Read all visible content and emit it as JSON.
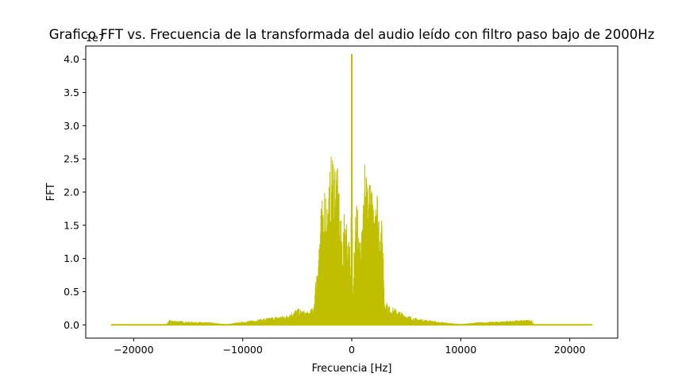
{
  "chart_data": {
    "type": "line",
    "title": "Grafico FFT vs. Frecuencia de la transformada del audio leído con filtro paso bajo de 2000Hz",
    "xlabel": "Frecuencia [Hz]",
    "ylabel": "FFT",
    "y_offset_label": "1e7",
    "xlim": [
      -24400,
      24400
    ],
    "ylim": [
      -0.2,
      4.2
    ],
    "x_ticks": [
      -20000,
      -10000,
      0,
      10000,
      20000
    ],
    "x_tick_labels": [
      "−20000",
      "−10000",
      "0",
      "10000",
      "20000"
    ],
    "y_ticks": [
      0.0,
      0.5,
      1.0,
      1.5,
      2.0,
      2.5,
      3.0,
      3.5,
      4.0
    ],
    "y_tick_labels": [
      "0.0",
      "0.5",
      "1.0",
      "1.5",
      "2.0",
      "2.5",
      "3.0",
      "3.5",
      "4.0"
    ],
    "y_scale_multiplier": 10000000,
    "grid": false,
    "series": [
      {
        "color": "#bfbf00",
        "envelope": {
          "x": [
            -22050,
            -17000,
            -16700,
            -16500,
            -15000,
            -13000,
            -11500,
            -10000,
            -8000,
            -6000,
            -5000,
            -4000,
            -3500,
            -3000,
            -2900,
            -2800,
            -2600,
            -2400,
            -2200,
            -2000,
            -1800,
            -1600,
            -1400,
            -1200,
            -1000,
            -800,
            -600,
            -400,
            -200,
            -100,
            0,
            100,
            200,
            400,
            600,
            800,
            1000,
            1200,
            1400,
            1600,
            1800,
            2000,
            2200,
            2400,
            2600,
            2800,
            2900,
            3000,
            3500,
            4000,
            5000,
            6000,
            8000,
            10000,
            11500,
            13000,
            15000,
            16500,
            16700,
            17000,
            22050
          ],
          "upper": [
            0.01,
            0.01,
            0.08,
            0.07,
            0.05,
            0.04,
            0.01,
            0.05,
            0.1,
            0.15,
            0.25,
            0.2,
            0.28,
            1.35,
            1.6,
            1.8,
            2.0,
            2.25,
            1.8,
            2.4,
            2.68,
            2.65,
            2.55,
            2.2,
            1.6,
            1.4,
            1.9,
            1.5,
            1.3,
            0.6,
            4.08,
            0.6,
            1.3,
            2.15,
            1.7,
            1.3,
            1.5,
            2.55,
            2.45,
            2.2,
            2.1,
            2.0,
            2.4,
            2.0,
            1.7,
            1.55,
            1.25,
            0.4,
            0.28,
            0.25,
            0.15,
            0.1,
            0.05,
            0.01,
            0.04,
            0.05,
            0.07,
            0.08,
            0.01,
            0.01,
            0.01
          ]
        }
      }
    ]
  }
}
